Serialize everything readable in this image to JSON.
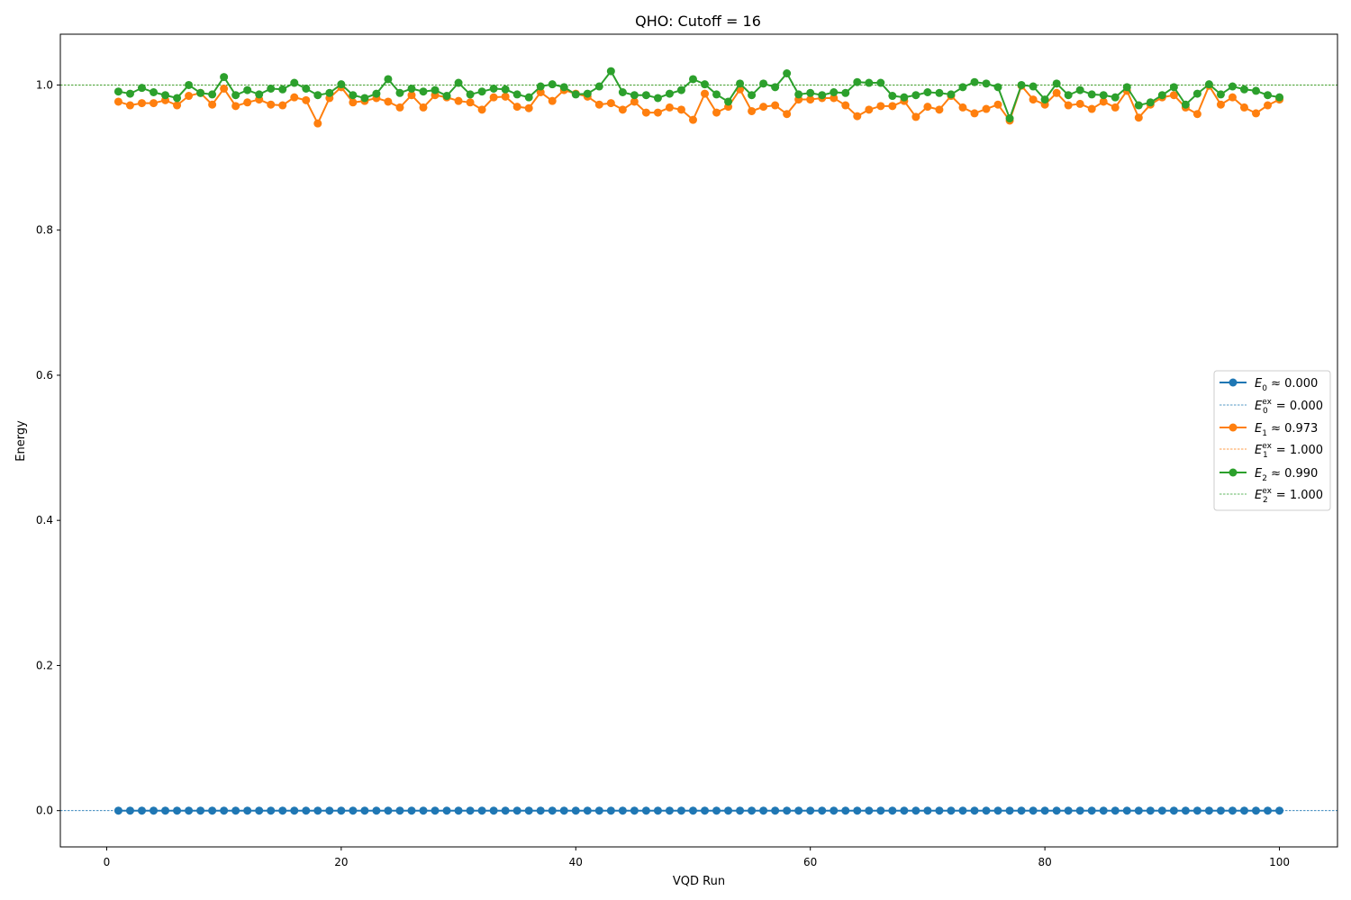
{
  "chart_data": {
    "type": "line",
    "title": "QHO: Cutoff = 16",
    "xlabel": "VQD Run",
    "ylabel": "Energy",
    "xlim": [
      -3.95,
      104.95
    ],
    "ylim": [
      -0.05,
      1.07
    ],
    "xticks": [
      0,
      20,
      40,
      60,
      80,
      100
    ],
    "yticks": [
      0.0,
      0.2,
      0.4,
      0.6,
      0.8,
      1.0
    ],
    "xtick_labels": [
      "0",
      "20",
      "40",
      "60",
      "80",
      "100"
    ],
    "ytick_labels": [
      "0.0",
      "0.2",
      "0.4",
      "0.6",
      "0.8",
      "1.0"
    ],
    "grid": false,
    "legend_position": "center-right",
    "series": [
      {
        "name": "E_0 ≈ 0.000",
        "label_base": "E",
        "label_sub": "0",
        "label_rest": " ≈ 0.000",
        "color": "#1f77b4",
        "y": [
          0.0,
          0.0,
          0.0,
          0.0,
          0.0,
          0.0,
          0.0,
          0.0,
          0.0,
          0.0,
          0.0,
          0.0,
          0.0,
          0.0,
          0.0,
          0.0,
          0.0,
          0.0,
          0.0,
          0.0,
          0.0,
          0.0,
          0.0,
          0.0,
          0.0,
          0.0,
          0.0,
          0.0,
          0.0,
          0.0,
          0.0,
          0.0,
          0.0,
          0.0,
          0.0,
          0.0,
          0.0,
          0.0,
          0.0,
          0.0,
          0.0,
          0.0,
          0.0,
          0.0,
          0.0,
          0.0,
          0.0,
          0.0,
          0.0,
          0.0,
          0.0,
          0.0,
          0.0,
          0.0,
          0.0,
          0.0,
          0.0,
          0.0,
          0.0,
          0.0,
          0.0,
          0.0,
          0.0,
          0.0,
          0.0,
          0.0,
          0.0,
          0.0,
          0.0,
          0.0,
          0.0,
          0.0,
          0.0,
          0.0,
          0.0,
          0.0,
          0.0,
          0.0,
          0.0,
          0.0,
          0.0,
          0.0,
          0.0,
          0.0,
          0.0,
          0.0,
          0.0,
          0.0,
          0.0,
          0.0,
          0.0,
          0.0,
          0.0,
          0.0,
          0.0,
          0.0,
          0.0,
          0.0,
          0.0,
          0.0
        ]
      },
      {
        "name": "E_1 ≈ 0.973",
        "label_base": "E",
        "label_sub": "1",
        "label_rest": " ≈ 0.973",
        "color": "#ff7f0e",
        "y": [
          0.977,
          0.972,
          0.975,
          0.975,
          0.979,
          0.972,
          0.985,
          0.989,
          0.973,
          0.995,
          0.971,
          0.976,
          0.98,
          0.973,
          0.972,
          0.983,
          0.979,
          0.947,
          0.982,
          0.997,
          0.976,
          0.978,
          0.982,
          0.977,
          0.969,
          0.986,
          0.969,
          0.986,
          0.983,
          0.978,
          0.976,
          0.966,
          0.983,
          0.984,
          0.97,
          0.968,
          0.99,
          0.978,
          0.993,
          0.988,
          0.984,
          0.973,
          0.975,
          0.966,
          0.977,
          0.962,
          0.962,
          0.969,
          0.966,
          0.952,
          0.988,
          0.962,
          0.97,
          0.994,
          0.964,
          0.97,
          0.972,
          0.96,
          0.98,
          0.98,
          0.982,
          0.982,
          0.972,
          0.957,
          0.966,
          0.971,
          0.971,
          0.978,
          0.956,
          0.97,
          0.966,
          0.985,
          0.969,
          0.961,
          0.967,
          0.973,
          0.951,
          0.999,
          0.98,
          0.973,
          0.989,
          0.972,
          0.974,
          0.967,
          0.977,
          0.969,
          0.992,
          0.955,
          0.973,
          0.983,
          0.986,
          0.969,
          0.96,
          0.999,
          0.973,
          0.983,
          0.969,
          0.961,
          0.972,
          0.98
        ]
      },
      {
        "name": "E_2 ≈ 0.990",
        "label_base": "E",
        "label_sub": "2",
        "label_rest": " ≈ 0.990",
        "color": "#2ca02c",
        "y": [
          0.991,
          0.988,
          0.996,
          0.99,
          0.986,
          0.982,
          1.0,
          0.989,
          0.987,
          1.011,
          0.986,
          0.993,
          0.987,
          0.995,
          0.994,
          1.003,
          0.995,
          0.986,
          0.989,
          1.001,
          0.986,
          0.982,
          0.988,
          1.008,
          0.989,
          0.995,
          0.991,
          0.993,
          0.985,
          1.003,
          0.987,
          0.991,
          0.995,
          0.994,
          0.987,
          0.983,
          0.998,
          1.001,
          0.997,
          0.987,
          0.988,
          0.998,
          1.019,
          0.99,
          0.986,
          0.986,
          0.982,
          0.988,
          0.993,
          1.008,
          1.001,
          0.987,
          0.977,
          1.002,
          0.986,
          1.002,
          0.997,
          1.016,
          0.987,
          0.989,
          0.986,
          0.99,
          0.989,
          1.004,
          1.003,
          1.003,
          0.985,
          0.983,
          0.986,
          0.99,
          0.989,
          0.987,
          0.997,
          1.004,
          1.002,
          0.997,
          0.954,
          1.0,
          0.998,
          0.98,
          1.002,
          0.986,
          0.993,
          0.987,
          0.986,
          0.983,
          0.997,
          0.972,
          0.976,
          0.986,
          0.997,
          0.973,
          0.988,
          1.001,
          0.987,
          0.998,
          0.994,
          0.992,
          0.986,
          0.983
        ]
      }
    ],
    "exact_lines": [
      {
        "name": "E_0^ex = 0.000",
        "label_base": "E",
        "label_sub": "0",
        "label_sup": "ex",
        "label_rest": " = 0.000",
        "color": "#1f77b4",
        "y": 0.0
      },
      {
        "name": "E_1^ex = 1.000",
        "label_base": "E",
        "label_sub": "1",
        "label_sup": "ex",
        "label_rest": " = 1.000",
        "color": "#ff7f0e",
        "y": 1.0
      },
      {
        "name": "E_2^ex = 1.000",
        "label_base": "E",
        "label_sub": "2",
        "label_sup": "ex",
        "label_rest": " = 1.000",
        "color": "#2ca02c",
        "y": 1.0
      }
    ]
  }
}
